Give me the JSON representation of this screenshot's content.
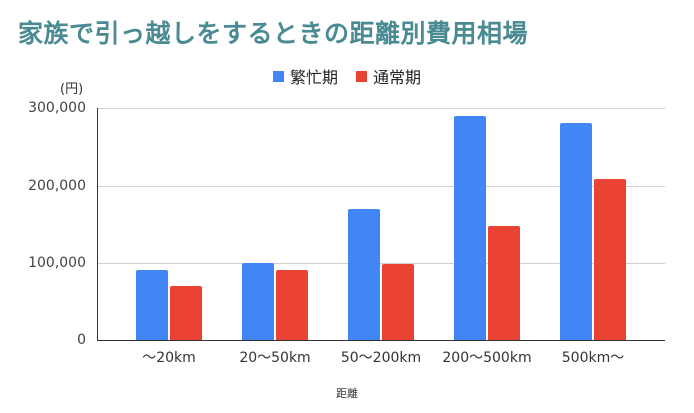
{
  "chart_data": {
    "type": "bar",
    "title": "家族で引っ越しをするときの距離別費用相場",
    "xlabel": "距離",
    "ylabel": "(円)",
    "categories": [
      "〜20km",
      "20〜50km",
      "50〜200km",
      "200〜500km",
      "500km〜"
    ],
    "series": [
      {
        "name": "繁忙期",
        "color": "#4285f4",
        "values": [
          90000,
          100000,
          170000,
          290000,
          280000
        ]
      },
      {
        "name": "通常期",
        "color": "#ea4335",
        "values": [
          70000,
          90000,
          98000,
          148000,
          208000
        ]
      }
    ],
    "ylim": [
      0,
      300000
    ],
    "yticks": [
      "0",
      "100,000",
      "200,000",
      "300,000"
    ],
    "grid": true,
    "legend_position": "top"
  },
  "title": "家族で引っ越しをするときの距離別費用相場",
  "unit": "(円)",
  "legend": [
    {
      "label": "繁忙期",
      "color": "#4285f4"
    },
    {
      "label": "通常期",
      "color": "#ea4335"
    }
  ],
  "y_ticks": [
    "300,000",
    "200,000",
    "100,000",
    "0"
  ],
  "x_ticks": [
    "〜20km",
    "20〜50km",
    "50〜200km",
    "200〜500km",
    "500km〜"
  ],
  "x_label": "距離"
}
